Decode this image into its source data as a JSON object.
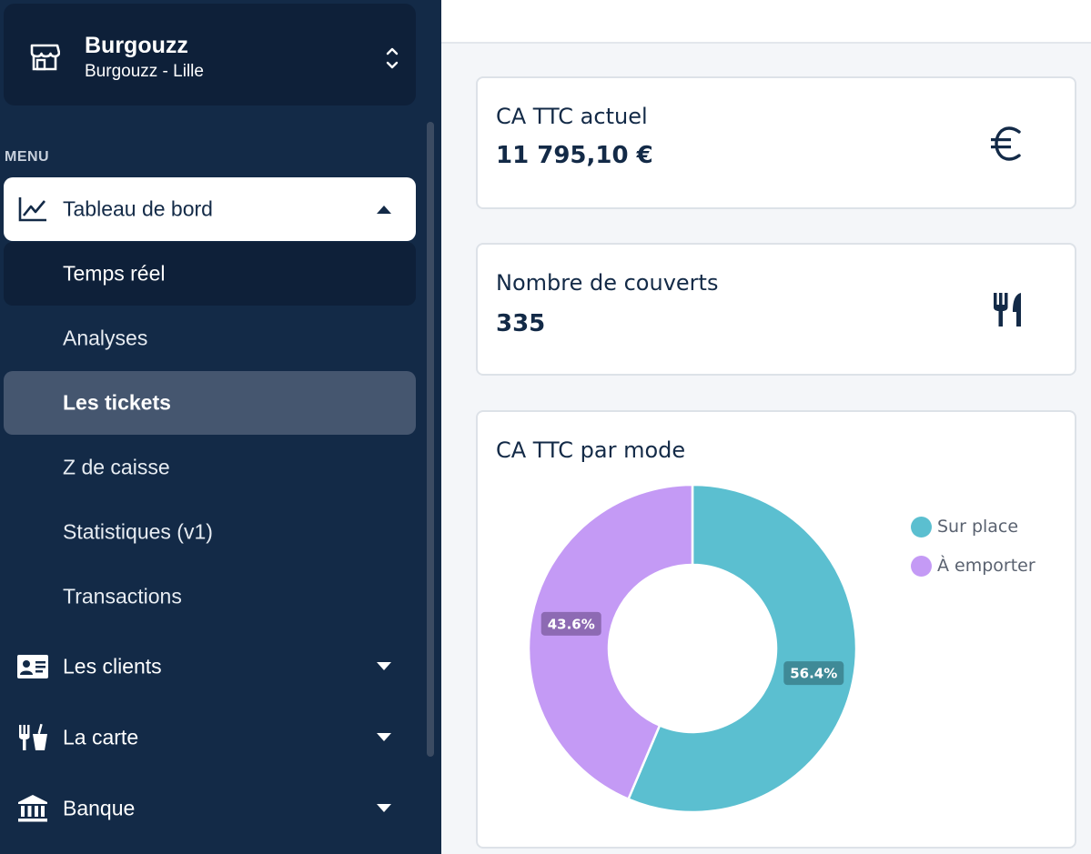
{
  "store": {
    "name": "Burgouzz",
    "location": "Burgouzz - Lille"
  },
  "sidebar": {
    "section_label": "MENU",
    "dashboard": {
      "label": "Tableau de bord",
      "subitems": [
        {
          "label": "Temps réel"
        },
        {
          "label": "Analyses"
        },
        {
          "label": "Les tickets"
        },
        {
          "label": "Z de caisse"
        },
        {
          "label": "Statistiques (v1)"
        },
        {
          "label": "Transactions"
        }
      ]
    },
    "clients": {
      "label": "Les clients"
    },
    "menu_card": {
      "label": "La carte"
    },
    "bank": {
      "label": "Banque"
    }
  },
  "main": {
    "revenue_card": {
      "title": "CA TTC actuel",
      "value": "11 795,10 €"
    },
    "covers_card": {
      "title": "Nombre de couverts",
      "value": "335"
    },
    "mode_card": {
      "title": "CA TTC par mode"
    }
  },
  "colors": {
    "sidebar_bg": "#132a47",
    "on_site": "#5bbfd0",
    "takeaway": "#c49af5"
  },
  "chart_data": {
    "type": "pie",
    "donut": true,
    "title": "CA TTC par mode",
    "legend_position": "right",
    "series": [
      {
        "name": "Sur place",
        "value": 56.4,
        "label": "56.4%",
        "color": "#5bbfd0"
      },
      {
        "name": "À emporter",
        "value": 43.6,
        "label": "43.6%",
        "color": "#c49af5"
      }
    ]
  }
}
